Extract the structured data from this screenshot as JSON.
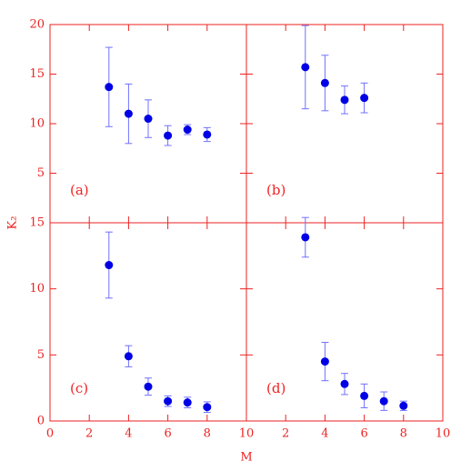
{
  "xlabel": "M",
  "ylabel": "K₂",
  "chart_data": [
    {
      "type": "scatter",
      "annotation": "(a)",
      "x": [
        3,
        4,
        5,
        6,
        7,
        8
      ],
      "values": [
        13.7,
        11.0,
        10.5,
        8.8,
        9.4,
        8.9
      ],
      "errors": [
        4.0,
        3.0,
        1.9,
        1.0,
        0.5,
        0.7
      ],
      "xlim": [
        0,
        10
      ],
      "ylim": [
        0,
        20
      ],
      "xticks": [
        0,
        2,
        4,
        6,
        8,
        10
      ],
      "yticks": [
        5,
        10,
        15,
        20
      ],
      "xtick_labels": false,
      "ytick_labels": true,
      "color": "#0000e6",
      "error_color": "#7070ff",
      "axis_color": "#ee2222"
    },
    {
      "type": "scatter",
      "annotation": "(b)",
      "x": [
        3,
        4,
        5,
        6
      ],
      "values": [
        15.7,
        14.1,
        12.4,
        12.6
      ],
      "errors": [
        4.2,
        2.8,
        1.4,
        1.5
      ],
      "xlim": [
        0,
        10
      ],
      "ylim": [
        0,
        20
      ],
      "xticks": [
        0,
        2,
        4,
        6,
        8,
        10
      ],
      "yticks": [
        5,
        10,
        15,
        20
      ],
      "xtick_labels": false,
      "ytick_labels": false,
      "color": "#0000e6",
      "error_color": "#7070ff",
      "axis_color": "#ee2222"
    },
    {
      "type": "scatter",
      "annotation": "(c)",
      "x": [
        3,
        4,
        5,
        6,
        7,
        8
      ],
      "values": [
        11.8,
        4.9,
        2.6,
        1.5,
        1.4,
        1.05
      ],
      "errors": [
        2.5,
        0.8,
        0.65,
        0.4,
        0.4,
        0.4
      ],
      "xlim": [
        0,
        10
      ],
      "ylim": [
        0,
        15
      ],
      "xticks": [
        0,
        2,
        4,
        6,
        8,
        10
      ],
      "yticks": [
        0,
        5,
        10,
        15
      ],
      "xtick_labels": true,
      "ytick_labels": true,
      "color": "#0000e6",
      "error_color": "#7070ff",
      "axis_color": "#ee2222"
    },
    {
      "type": "scatter",
      "annotation": "(d)",
      "x": [
        3,
        4,
        5,
        6,
        7,
        8
      ],
      "values": [
        13.9,
        4.5,
        2.8,
        1.9,
        1.5,
        1.15
      ],
      "errors": [
        1.5,
        1.45,
        0.8,
        0.9,
        0.7,
        0.35
      ],
      "xlim": [
        0,
        10
      ],
      "ylim": [
        0,
        15
      ],
      "xticks": [
        2,
        4,
        6,
        8,
        10
      ],
      "yticks": [
        0,
        5,
        10,
        15
      ],
      "xtick_labels": true,
      "ytick_labels": false,
      "color": "#0000e6",
      "error_color": "#7070ff",
      "axis_color": "#ee2222"
    }
  ]
}
